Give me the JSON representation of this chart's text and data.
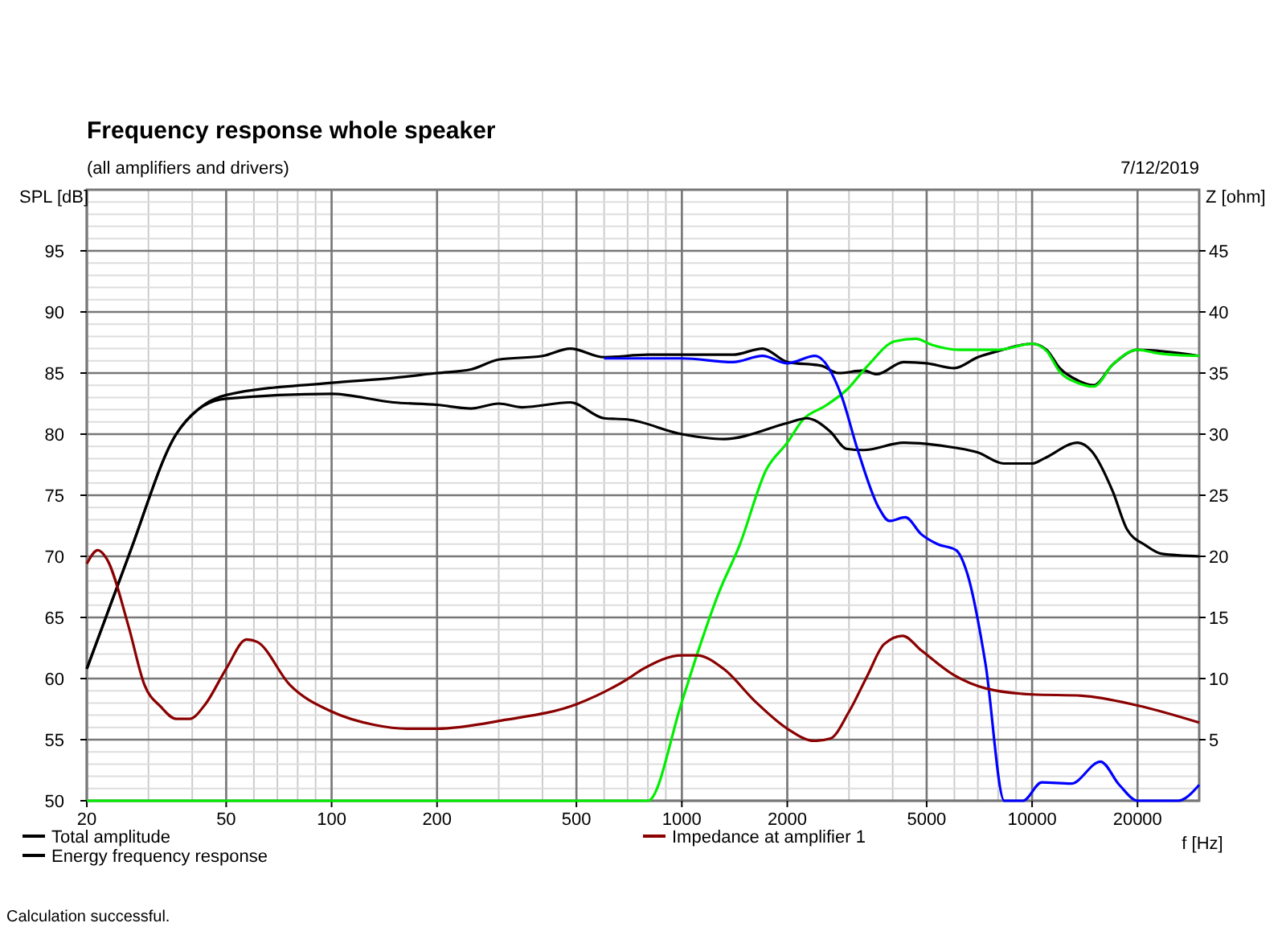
{
  "chart_data": {
    "type": "line",
    "title": "Frequency response whole speaker",
    "subtitle": "(all amplifiers and drivers)",
    "xlabel": "f [Hz]",
    "ylabel": "SPL [dB]",
    "y2label": "Z [ohm]",
    "log": "x",
    "grid": true,
    "legend": "bottom",
    "marker": "none",
    "line_style": "solid",
    "xlim": [
      20,
      30000
    ],
    "xticks": [
      20,
      50,
      100,
      200,
      500,
      1000,
      2000,
      5000,
      10000,
      20000
    ],
    "ylim": [
      50,
      100
    ],
    "yticks": [
      50,
      55,
      60,
      65,
      70,
      75,
      80,
      85,
      90,
      95
    ],
    "y2lim": [
      0,
      50
    ],
    "y2ticks": [
      5,
      10,
      15,
      20,
      25,
      30,
      35,
      40,
      45
    ],
    "annotations": [
      {
        "text": "7/12/2019"
      },
      {
        "text": "Calculation successful."
      }
    ],
    "series": [
      {
        "name": "Total amplitude",
        "color": "#000000",
        "x": [
          20,
          26.3,
          36,
          41.5,
          50,
          100,
          150,
          200,
          250,
          300,
          400,
          480,
          600,
          800,
          1000,
          1400,
          1700,
          2000,
          2500,
          2800,
          3300,
          3600,
          4300,
          5000,
          6000,
          7000,
          8000,
          10000,
          11000,
          12000,
          13500,
          15000,
          17000,
          20000,
          30000
        ],
        "values": [
          60.8,
          70,
          80,
          82,
          83.2,
          84.2,
          84.6,
          85,
          85.3,
          86.1,
          86.4,
          87,
          86.3,
          86.5,
          86.5,
          86.5,
          87,
          85.9,
          85.6,
          85,
          85.2,
          84.9,
          85.9,
          85.8,
          85.4,
          86.3,
          86.8,
          87.4,
          86.9,
          85.4,
          84.4,
          84,
          85.7,
          86.9,
          86.4
        ]
      },
      {
        "color": "#00ee00",
        "x": [
          20,
          800,
          1000,
          1103,
          1270,
          1461,
          1743,
          2000,
          2220,
          2563,
          2950,
          3395,
          4055,
          4660,
          5180,
          6180,
          7000,
          8000,
          10000,
          11000,
          12000,
          13500,
          15000,
          17000,
          20000,
          23000,
          30000
        ],
        "values": [
          50,
          50,
          58.1,
          61.9,
          66.9,
          70.9,
          77.1,
          79.3,
          81.2,
          82.3,
          83.6,
          85.6,
          87.6,
          87.8,
          87.3,
          86.9,
          86.9,
          86.9,
          87.4,
          86.8,
          85.1,
          84.2,
          83.9,
          85.7,
          86.9,
          86.6,
          86.4
        ]
      },
      {
        "name": "Energy frequency response",
        "color": "#000000",
        "x": [
          20,
          26.3,
          36,
          41.5,
          50,
          100,
          150,
          200,
          250,
          300,
          350,
          480,
          600,
          700,
          1000,
          1315,
          2000,
          2270,
          2656,
          2950,
          3300,
          4300,
          5000,
          6000,
          7000,
          8300,
          10000,
          10810,
          13500,
          14800,
          17000,
          18670,
          21090,
          23500,
          30000
        ],
        "values": [
          60.8,
          70,
          80,
          82,
          82.9,
          83.3,
          82.6,
          82.4,
          82.1,
          82.5,
          82.2,
          82.6,
          81.3,
          81.2,
          80,
          79.6,
          80.9,
          81.3,
          80.2,
          78.8,
          78.7,
          79.3,
          79.2,
          78.9,
          78.5,
          77.6,
          77.6,
          78,
          79.3,
          78.6,
          75.3,
          72.2,
          70.9,
          70.2,
          70
        ]
      },
      {
        "color": "#0000ff",
        "x": [
          600,
          1000,
          1400,
          1700,
          2000,
          2400,
          2851,
          3170,
          3646,
          3912,
          4346,
          4830,
          5368,
          6070,
          6513,
          7362,
          8330,
          9420,
          10650,
          12920,
          15680,
          17740,
          20060,
          26110,
          30000
        ],
        "values": [
          86.2,
          86.2,
          85.9,
          86.4,
          85.8,
          86.4,
          83.2,
          78.8,
          74,
          72.9,
          73.2,
          71.8,
          71,
          70.5,
          68.7,
          61.2,
          50,
          50,
          51.5,
          51.4,
          53.2,
          51.3,
          50,
          50,
          51.3
        ]
      },
      {
        "name": "Impedance at amplifier 1",
        "color": "#8b0000",
        "axis": "y2",
        "x": [
          20,
          21.5,
          22.8,
          26.3,
          29.2,
          32.5,
          36,
          39.3,
          43.6,
          50,
          57.2,
          61.3,
          75.9,
          100,
          132.9,
          164,
          200,
          310,
          500,
          694,
          776,
          1000,
          1103,
          1315,
          1623,
          2000,
          2392,
          2656,
          3003,
          3395,
          3776,
          4270,
          4830,
          5966,
          7362,
          10000,
          13860,
          20000,
          30000
        ],
        "values": [
          19.4,
          20.5,
          19.8,
          14.3,
          9.5,
          7.7,
          6.7,
          6.7,
          7.9,
          10.8,
          13.2,
          13,
          9.5,
          7.3,
          6.2,
          5.9,
          5.9,
          6.6,
          7.9,
          9.9,
          10.8,
          11.9,
          11.9,
          10.8,
          8.1,
          5.9,
          4.9,
          5.1,
          7.3,
          10.3,
          12.8,
          13.5,
          12.3,
          10.3,
          9.2,
          8.7,
          8.6,
          7.8,
          6.4
        ]
      }
    ]
  }
}
